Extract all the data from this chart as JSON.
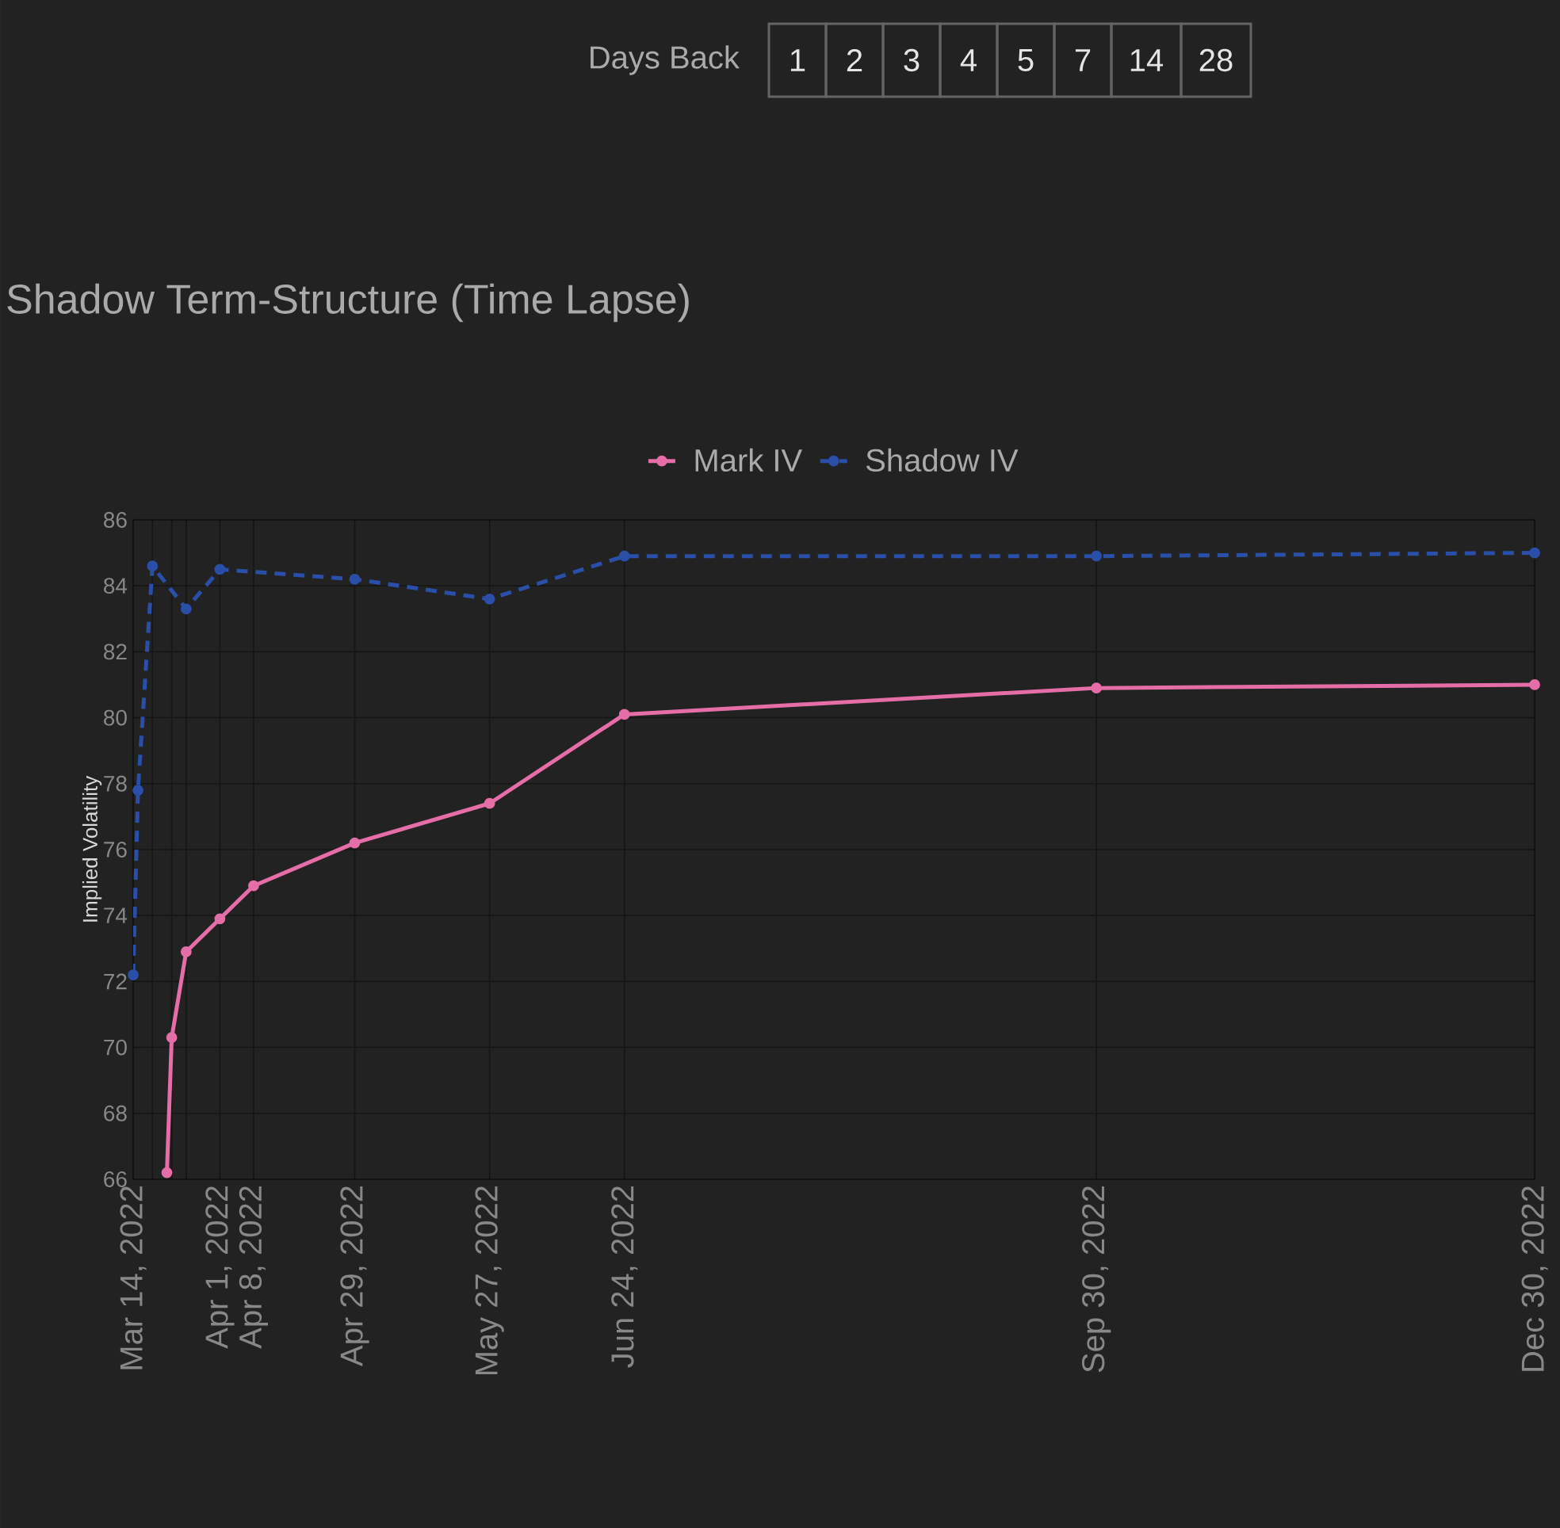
{
  "chart_data": {
    "type": "line",
    "title": "Shadow Term-Structure (Time Lapse)",
    "ylabel": "Implied Volatility",
    "annotations": [
      "Days Back",
      "1",
      "2",
      "3",
      "4",
      "5",
      "7",
      "14",
      "28"
    ],
    "xlim": [
      "2022-03-14",
      "2022-12-30"
    ],
    "xticks": [
      {
        "value": "2022-03-14",
        "label": "Mar 14, 2022"
      },
      {
        "value": "2022-03-18",
        "label": null
      },
      {
        "value": "2022-03-22",
        "label": null
      },
      {
        "value": "2022-03-25",
        "label": null
      },
      {
        "value": "2022-04-01",
        "label": "Apr 1, 2022"
      },
      {
        "value": "2022-04-08",
        "label": "Apr 8, 2022"
      },
      {
        "value": "2022-04-29",
        "label": "Apr 29, 2022"
      },
      {
        "value": "2022-05-27",
        "label": "May 27, 2022"
      },
      {
        "value": "2022-06-24",
        "label": "Jun 24, 2022"
      },
      {
        "value": "2022-09-30",
        "label": "Sep 30, 2022"
      },
      {
        "value": "2022-12-30",
        "label": "Dec 30, 2022"
      }
    ],
    "ylim": [
      66,
      86
    ],
    "yticks": [
      66,
      68,
      70,
      72,
      74,
      76,
      78,
      80,
      82,
      84,
      86
    ],
    "grid": true,
    "legend": "top",
    "marker": "circle",
    "series": [
      {
        "name": "Mark IV",
        "color": "#e56ea8",
        "line_style": "solid",
        "x": [
          "2022-03-21",
          "2022-03-22",
          "2022-03-25",
          "2022-04-01",
          "2022-04-08",
          "2022-04-29",
          "2022-05-27",
          "2022-06-24",
          "2022-09-30",
          "2022-12-30"
        ],
        "values": [
          66.2,
          70.3,
          72.9,
          73.9,
          74.9,
          76.2,
          77.4,
          80.1,
          80.9,
          81.0
        ]
      },
      {
        "name": "Shadow IV",
        "color": "#2a4fa8",
        "line_style": "dashed",
        "x": [
          "2022-03-14",
          "2022-03-15",
          "2022-03-18",
          "2022-03-25",
          "2022-04-01",
          "2022-04-29",
          "2022-05-27",
          "2022-06-24",
          "2022-09-30",
          "2022-12-30"
        ],
        "values": [
          72.2,
          77.8,
          84.6,
          83.3,
          84.5,
          84.2,
          83.6,
          84.9,
          84.9,
          85.0
        ]
      }
    ]
  }
}
